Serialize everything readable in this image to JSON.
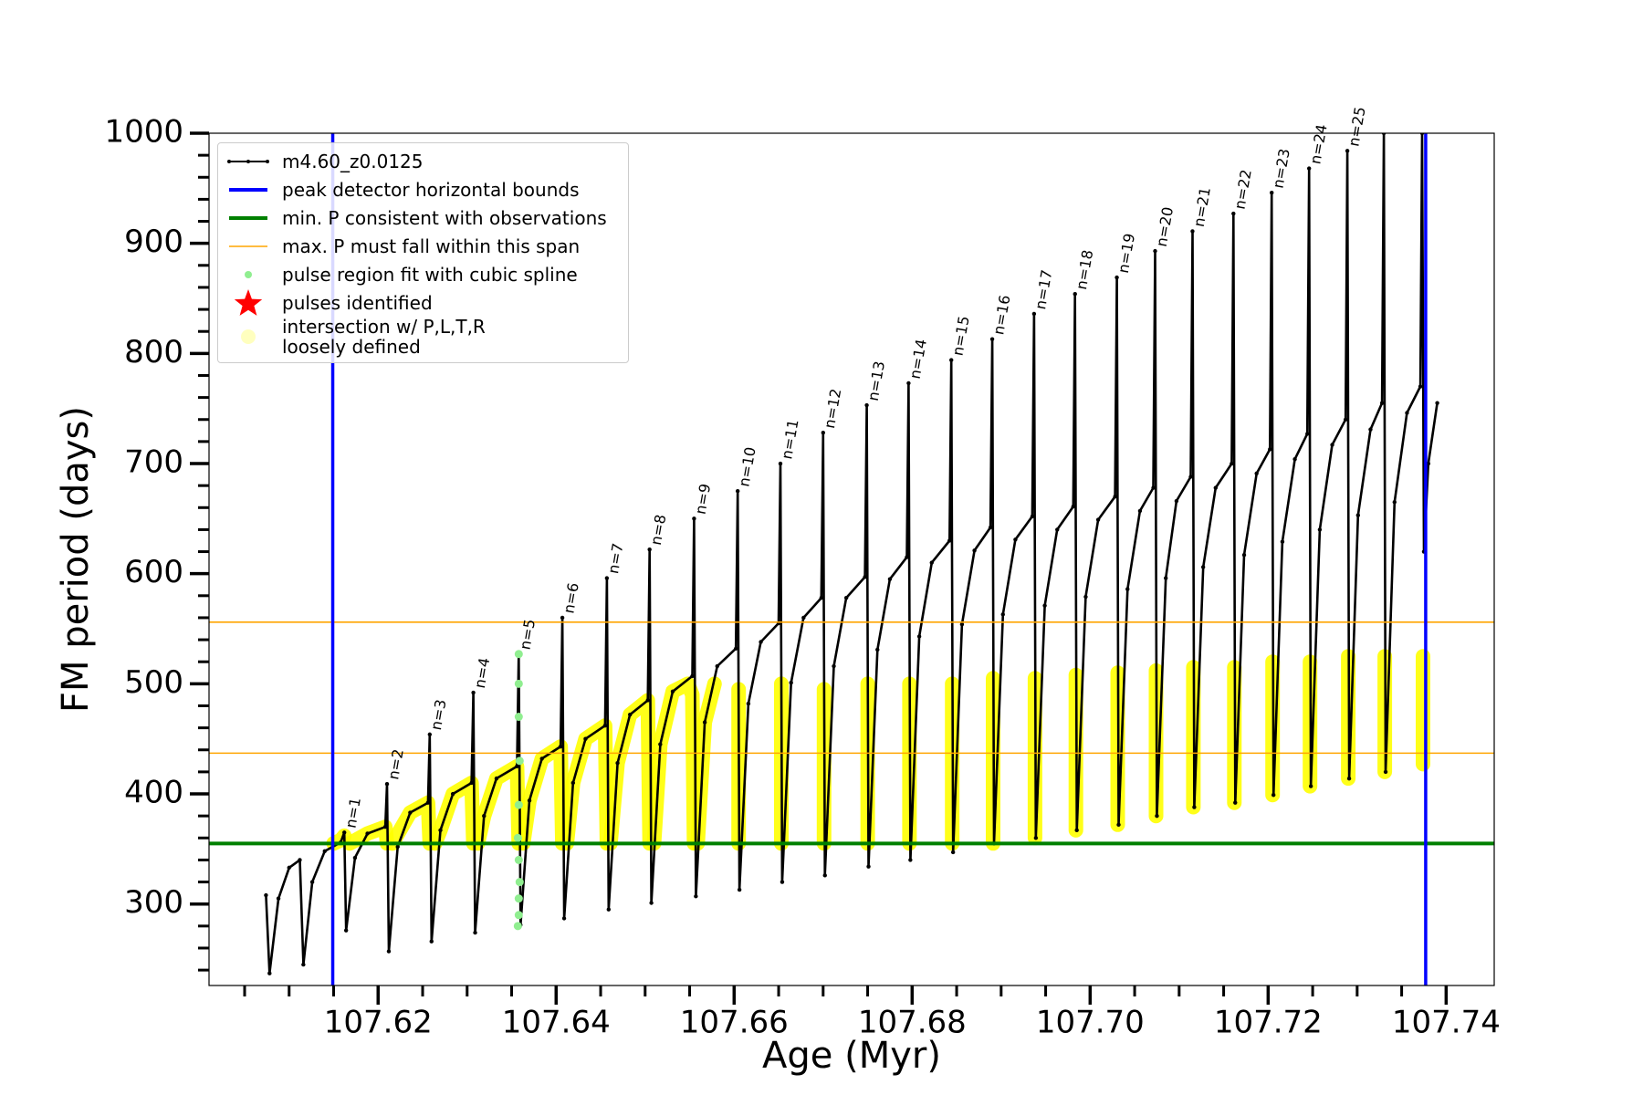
{
  "chart_data": {
    "type": "line",
    "xlabel": "Age (Myr)",
    "ylabel": "FM period (days)",
    "xlim": [
      107.601,
      107.7454
    ],
    "ylim": [
      226,
      1000
    ],
    "xticks": [
      107.62,
      107.64,
      107.66,
      107.68,
      {
        "value": 107.7,
        "label": "107.70"
      },
      107.72,
      107.74
    ],
    "xminorticks": [
      107.605,
      107.61,
      107.615,
      107.625,
      107.63,
      107.635,
      107.645,
      107.65,
      107.655,
      107.665,
      107.67,
      107.675,
      107.685,
      107.69,
      107.695,
      107.705,
      107.71,
      107.715,
      107.725,
      107.73,
      107.735
    ],
    "yticks": [
      300,
      400,
      500,
      600,
      700,
      800,
      900,
      1000
    ],
    "yminorticks": [
      240,
      260,
      280,
      320,
      340,
      360,
      380,
      420,
      440,
      460,
      480,
      520,
      540,
      560,
      580,
      620,
      640,
      660,
      680,
      720,
      740,
      760,
      780,
      820,
      840,
      860,
      880,
      920,
      940,
      960,
      980
    ],
    "legend": "upper left",
    "series": [
      {
        "name": "m4.60_z0.0125",
        "type": "line",
        "marker": "small",
        "color": "#000000",
        "x": [
          107.6074,
          107.6078,
          107.6088,
          107.61,
          107.6112,
          107.6116,
          107.6126,
          107.614,
          107.6158,
          107.6162,
          107.6164,
          107.6174,
          107.6188,
          107.6208,
          107.621,
          107.6212,
          107.6222,
          107.6236,
          107.6256,
          107.6258,
          107.626,
          107.627,
          107.6284,
          107.6305,
          107.6307,
          107.6309,
          107.6319,
          107.6333,
          107.6356,
          107.6358,
          107.636,
          107.637,
          107.6384,
          107.6405,
          107.6407,
          107.6409,
          107.6419,
          107.6433,
          107.6455,
          107.6457,
          107.6459,
          107.6469,
          107.6483,
          107.6503,
          107.6505,
          107.6507,
          107.6517,
          107.6531,
          107.6553,
          107.6555,
          107.6557,
          107.6567,
          107.6581,
          107.6602,
          107.6604,
          107.6606,
          107.6616,
          107.663,
          107.665,
          107.6652,
          107.6654,
          107.6664,
          107.6678,
          107.6698,
          107.67,
          107.6702,
          107.6712,
          107.6726,
          107.6747,
          107.6749,
          107.6751,
          107.6761,
          107.6775,
          107.6794,
          107.6796,
          107.6798,
          107.6808,
          107.6822,
          107.6842,
          107.6844,
          107.6846,
          107.6856,
          107.687,
          107.6888,
          107.689,
          107.6892,
          107.6902,
          107.6916,
          107.6935,
          107.6937,
          107.6939,
          107.6949,
          107.6963,
          107.6981,
          107.6983,
          107.6985,
          107.6995,
          107.7009,
          107.7028,
          107.703,
          107.7032,
          107.7042,
          107.7056,
          107.7071,
          107.7073,
          107.7075,
          107.7085,
          107.7097,
          107.7113,
          107.7115,
          107.7117,
          107.7127,
          107.7141,
          107.7159,
          107.7161,
          107.7163,
          107.7173,
          107.7187,
          107.7202,
          107.7204,
          107.7206,
          107.7216,
          107.723,
          107.7244,
          107.7246,
          107.7248,
          107.7258,
          107.7272,
          107.7287,
          107.7289,
          107.7291,
          107.7301,
          107.7315,
          107.7328,
          107.733,
          107.7332,
          107.7342,
          107.7356,
          107.7371,
          107.7373,
          107.7375,
          107.738,
          107.739
        ],
        "values": [
          308,
          237,
          305,
          333,
          340,
          245,
          320,
          348,
          356,
          365,
          276,
          342,
          364,
          370,
          409,
          257,
          352,
          383,
          392,
          454,
          266,
          367,
          400,
          410,
          492,
          274,
          380,
          414,
          425,
          527,
          281,
          394,
          432,
          443,
          560,
          287,
          410,
          450,
          462,
          596,
          295,
          428,
          472,
          485,
          622,
          301,
          445,
          493,
          507,
          650,
          307,
          465,
          516,
          532,
          675,
          313,
          482,
          538,
          555,
          700,
          320,
          501,
          560,
          578,
          728,
          326,
          516,
          578,
          597,
          753,
          334,
          531,
          595,
          615,
          773,
          340,
          543,
          610,
          630,
          794,
          347,
          554,
          621,
          642,
          813,
          355,
          563,
          631,
          652,
          836,
          360,
          571,
          640,
          661,
          854,
          367,
          579,
          649,
          670,
          869,
          372,
          586,
          657,
          678,
          893,
          380,
          596,
          666,
          688,
          911,
          388,
          606,
          678,
          700,
          927,
          392,
          617,
          691,
          713,
          946,
          399,
          629,
          704,
          727,
          968,
          407,
          640,
          717,
          740,
          984,
          414,
          653,
          731,
          755,
          1000,
          420,
          665,
          746,
          770,
          1000,
          620,
          700,
          755
        ]
      },
      {
        "name": "pulse region fit with cubic spline",
        "type": "scatter",
        "marker": "small",
        "color": "#90ee90",
        "x": [
          107.6357,
          107.6358,
          107.6358,
          107.6359,
          107.6358,
          107.6357,
          107.6358,
          107.6359,
          107.6358,
          107.6358,
          107.6358
        ],
        "values": [
          280,
          290,
          305,
          320,
          340,
          360,
          390,
          430,
          470,
          500,
          527
        ]
      },
      {
        "name": "pulses identified",
        "type": "scatter",
        "marker": "star",
        "color": "#ff0000",
        "x": [],
        "values": []
      },
      {
        "name": "intersection w/ P,L,T,R\nloosely defined",
        "type": "line",
        "marker": "large",
        "color": "#ffff00",
        "x": [
          107.615,
          107.6158,
          107.6162,
          null,
          107.6168,
          107.6188,
          107.6208,
          107.621,
          null,
          107.6216,
          107.6236,
          107.6256,
          107.6258,
          null,
          107.6264,
          107.627,
          107.6284,
          107.6305,
          107.6307,
          null,
          107.6312,
          107.6319,
          107.6333,
          107.6356,
          107.6358,
          null,
          107.6363,
          107.637,
          107.6384,
          107.6405,
          107.6407,
          null,
          107.6412,
          107.6419,
          107.6433,
          107.6455,
          107.6457,
          null,
          107.6461,
          107.6469,
          107.6483,
          107.6503,
          107.6505,
          null,
          107.651,
          107.6517,
          107.6531,
          107.6548,
          107.6553,
          107.6555,
          null,
          107.6559,
          107.6567,
          107.6578,
          null,
          107.6605,
          107.6605,
          null,
          107.6653,
          107.6653,
          null,
          107.6701,
          107.6701,
          null,
          107.675,
          107.675,
          null,
          107.6797,
          107.6797,
          null,
          107.6845,
          107.6845,
          null,
          107.6891,
          107.6891,
          null,
          107.6938,
          107.6938,
          null,
          107.6984,
          107.6984,
          null,
          107.7031,
          107.7031,
          null,
          107.7074,
          107.7074,
          null,
          107.7116,
          107.7116,
          null,
          107.7162,
          107.7162,
          null,
          107.7205,
          107.7205,
          null,
          107.7247,
          107.7247,
          null,
          107.729,
          107.729,
          null,
          107.7331,
          107.7331,
          null,
          107.7374,
          107.7374
        ],
        "values": [
          355,
          358,
          362,
          null,
          355,
          364,
          370,
          355,
          null,
          355,
          383,
          392,
          355,
          null,
          355,
          367,
          400,
          410,
          355,
          null,
          355,
          380,
          414,
          425,
          355,
          null,
          355,
          394,
          432,
          443,
          355,
          null,
          355,
          410,
          450,
          462,
          355,
          null,
          355,
          428,
          472,
          485,
          355,
          null,
          355,
          445,
          493,
          500,
          490,
          355,
          null,
          355,
          465,
          500,
          null,
          355,
          495,
          null,
          355,
          500,
          null,
          355,
          495,
          null,
          355,
          500,
          null,
          355,
          500,
          null,
          355,
          500,
          null,
          355,
          505,
          null,
          360,
          505,
          null,
          367,
          508,
          null,
          372,
          510,
          null,
          380,
          512,
          null,
          388,
          515,
          null,
          392,
          515,
          null,
          399,
          520,
          null,
          407,
          520,
          null,
          414,
          525,
          null,
          420,
          525,
          null,
          427,
          525
        ]
      }
    ],
    "vlines": {
      "name": "peak detector horizontal bounds",
      "color": "#0000ff",
      "values": [
        107.6149,
        107.7377
      ]
    },
    "hlines": [
      {
        "name": "min. P consistent with observations",
        "color": "#008000",
        "values": [
          355
        ]
      },
      {
        "name": "max. P must fall within this span",
        "color": "#ffa500",
        "values": [
          437,
          556
        ]
      }
    ],
    "annotations": [
      {
        "text": "n=1",
        "x": 107.6162,
        "y": 365
      },
      {
        "text": "n=2",
        "x": 107.621,
        "y": 409
      },
      {
        "text": "n=3",
        "x": 107.6258,
        "y": 454
      },
      {
        "text": "n=4",
        "x": 107.6307,
        "y": 492
      },
      {
        "text": "n=5",
        "x": 107.6358,
        "y": 527
      },
      {
        "text": "n=6",
        "x": 107.6407,
        "y": 560
      },
      {
        "text": "n=7",
        "x": 107.6457,
        "y": 596
      },
      {
        "text": "n=8",
        "x": 107.6505,
        "y": 622
      },
      {
        "text": "n=9",
        "x": 107.6555,
        "y": 650
      },
      {
        "text": "n=10",
        "x": 107.6604,
        "y": 675
      },
      {
        "text": "n=11",
        "x": 107.6652,
        "y": 700
      },
      {
        "text": "n=12",
        "x": 107.67,
        "y": 728
      },
      {
        "text": "n=13",
        "x": 107.6749,
        "y": 753
      },
      {
        "text": "n=14",
        "x": 107.6796,
        "y": 773
      },
      {
        "text": "n=15",
        "x": 107.6844,
        "y": 794
      },
      {
        "text": "n=16",
        "x": 107.689,
        "y": 813
      },
      {
        "text": "n=17",
        "x": 107.6937,
        "y": 836
      },
      {
        "text": "n=18",
        "x": 107.6983,
        "y": 854
      },
      {
        "text": "n=19",
        "x": 107.703,
        "y": 869
      },
      {
        "text": "n=20",
        "x": 107.7073,
        "y": 893
      },
      {
        "text": "n=21",
        "x": 107.7115,
        "y": 911
      },
      {
        "text": "n=22",
        "x": 107.7161,
        "y": 927
      },
      {
        "text": "n=23",
        "x": 107.7204,
        "y": 946
      },
      {
        "text": "n=24",
        "x": 107.7246,
        "y": 968
      },
      {
        "text": "n=25",
        "x": 107.7289,
        "y": 984
      }
    ]
  }
}
